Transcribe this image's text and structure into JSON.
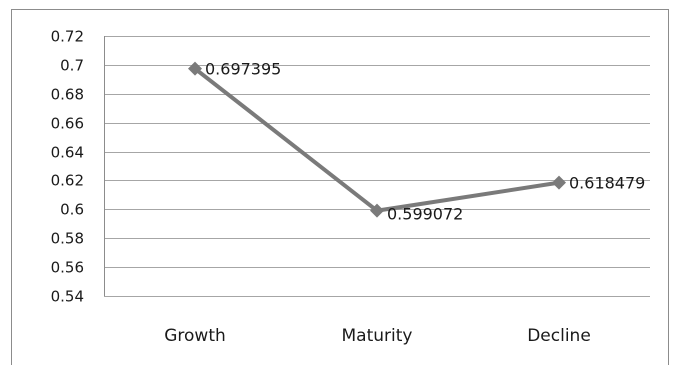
{
  "chart_data": {
    "type": "line",
    "categories": [
      "Growth",
      "Maturity",
      "Decline"
    ],
    "series": [
      {
        "values": [
          0.697395,
          0.599072,
          0.618479
        ],
        "color": "#7a7a7a"
      }
    ],
    "data_labels": [
      "0.697395",
      "0.599072",
      "0.618479"
    ],
    "yticks": [
      "0.72",
      "0.7",
      "0.68",
      "0.66",
      "0.64",
      "0.62",
      "0.6",
      "0.58",
      "0.56",
      "0.54"
    ],
    "ylim": [
      0.54,
      0.72
    ],
    "grid": true,
    "legend": "none",
    "marker": "diamond",
    "gridline_color": "#a6a6a6",
    "axis_color": "#8c8c8c"
  }
}
